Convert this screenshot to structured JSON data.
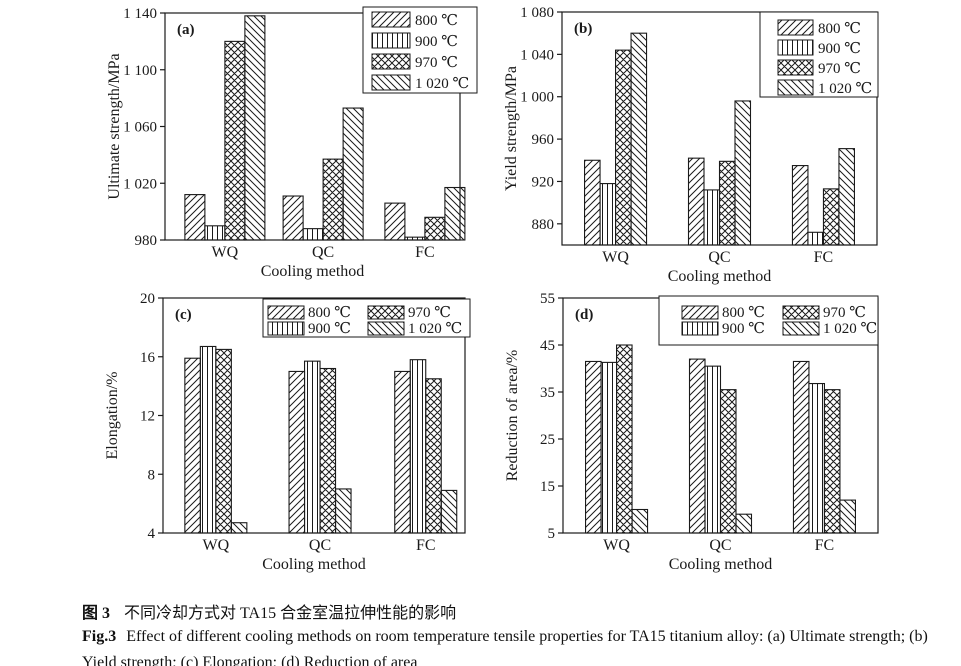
{
  "colors": {
    "ink": "#1a1a1a",
    "background": "#ffffff"
  },
  "figure": {
    "caption_zh": {
      "label": "图 3",
      "text": "不同冷却方式对 TA15 合金室温拉伸性能的影响"
    },
    "caption_en": {
      "label": "Fig.3",
      "line1": "Effect of different cooling methods on room temperature tensile properties for TA15 titanium alloy: (a) Ultimate strength; (b)",
      "line2": "Yield strength; (c) Elongation; (d) Reduction of area"
    }
  },
  "chart_data": [
    {
      "type": "bar",
      "panel_label": "(a)",
      "ylabel": "Ultimate strength/MPa",
      "xlabel": "Cooling method",
      "categories": [
        "WQ",
        "QC",
        "FC"
      ],
      "ylim": [
        980,
        1140
      ],
      "yticks": [
        980,
        1020,
        1060,
        1100,
        1140
      ],
      "ytick_labels": [
        "980",
        "1 020",
        "1 060",
        "1 100",
        "1 140"
      ],
      "grid": false,
      "legend_position": "top-right",
      "legend_columns": 1,
      "series": [
        {
          "name": "800 ℃",
          "pattern": "diagonal-up",
          "values": [
            1012,
            1011,
            1006
          ]
        },
        {
          "name": "900 ℃",
          "pattern": "vertical",
          "values": [
            990,
            988,
            982
          ]
        },
        {
          "name": "970 ℃",
          "pattern": "crosshatch",
          "values": [
            1120,
            1037,
            996
          ]
        },
        {
          "name": "1 020 ℃",
          "pattern": "diagonal-down",
          "values": [
            1138,
            1073,
            1017
          ]
        }
      ]
    },
    {
      "type": "bar",
      "panel_label": "(b)",
      "ylabel": "Yield strength/MPa",
      "xlabel": "Cooling method",
      "categories": [
        "WQ",
        "QC",
        "FC"
      ],
      "ylim": [
        860,
        1080
      ],
      "yticks": [
        880,
        920,
        960,
        1000,
        1040,
        1080
      ],
      "ytick_labels": [
        "880",
        "920",
        "960",
        "1 000",
        "1 040",
        "1 080"
      ],
      "grid": false,
      "legend_position": "top-right",
      "legend_columns": 1,
      "series": [
        {
          "name": "800 ℃",
          "pattern": "diagonal-up",
          "values": [
            940,
            942,
            935
          ]
        },
        {
          "name": "900 ℃",
          "pattern": "vertical",
          "values": [
            918,
            912,
            872
          ]
        },
        {
          "name": "970 ℃",
          "pattern": "crosshatch",
          "values": [
            1044,
            939,
            913
          ]
        },
        {
          "name": "1 020 ℃",
          "pattern": "diagonal-down",
          "values": [
            1060,
            996,
            951
          ]
        }
      ]
    },
    {
      "type": "bar",
      "panel_label": "(c)",
      "ylabel": "Elongation/%",
      "xlabel": "Cooling method",
      "categories": [
        "WQ",
        "QC",
        "FC"
      ],
      "ylim": [
        4,
        20
      ],
      "yticks": [
        4,
        8,
        12,
        16,
        20
      ],
      "ytick_labels": [
        "4",
        "8",
        "12",
        "16",
        "20"
      ],
      "grid": false,
      "legend_position": "top-center",
      "legend_columns": 2,
      "series": [
        {
          "name": "800 ℃",
          "pattern": "diagonal-up",
          "values": [
            15.9,
            15.0,
            15.0
          ]
        },
        {
          "name": "900 ℃",
          "pattern": "vertical",
          "values": [
            16.7,
            15.7,
            15.8
          ]
        },
        {
          "name": "970 ℃",
          "pattern": "crosshatch",
          "values": [
            16.5,
            15.2,
            14.5
          ]
        },
        {
          "name": "1 020 ℃",
          "pattern": "diagonal-down",
          "values": [
            4.7,
            7.0,
            6.9
          ]
        }
      ]
    },
    {
      "type": "bar",
      "panel_label": "(d)",
      "ylabel": "Reduction of area/%",
      "xlabel": "Cooling method",
      "categories": [
        "WQ",
        "QC",
        "FC"
      ],
      "ylim": [
        5,
        55
      ],
      "yticks": [
        5,
        15,
        25,
        35,
        45,
        55
      ],
      "ytick_labels": [
        "5",
        "15",
        "25",
        "35",
        "45",
        "55"
      ],
      "grid": false,
      "legend_position": "top-center",
      "legend_columns": 2,
      "series": [
        {
          "name": "800 ℃",
          "pattern": "diagonal-up",
          "values": [
            41.5,
            42.0,
            41.5
          ]
        },
        {
          "name": "900 ℃",
          "pattern": "vertical",
          "values": [
            41.3,
            40.5,
            36.8
          ]
        },
        {
          "name": "970 ℃",
          "pattern": "crosshatch",
          "values": [
            45.0,
            35.5,
            35.5
          ]
        },
        {
          "name": "1 020 ℃",
          "pattern": "diagonal-down",
          "values": [
            10.0,
            9.0,
            12.0
          ]
        }
      ]
    }
  ]
}
